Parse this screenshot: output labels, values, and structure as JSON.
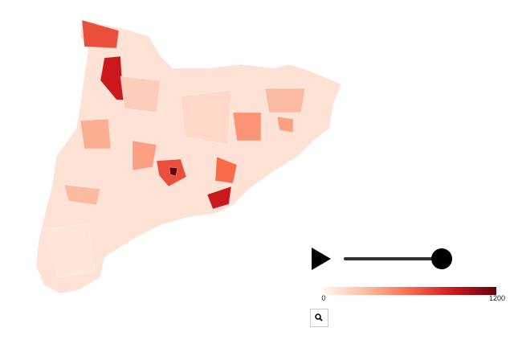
{
  "map": {
    "values": [
      100,
      700,
      900,
      900,
      700,
      1200,
      600,
      450,
      350,
      400,
      300,
      300,
      400,
      200,
      150,
      80
    ]
  },
  "legend": {
    "ticks": [
      0,
      1200
    ],
    "colors": [
      "#fff5f0",
      "#fcbba1",
      "#fb6a4a",
      "#cb181d",
      "#67000d"
    ]
  }
}
